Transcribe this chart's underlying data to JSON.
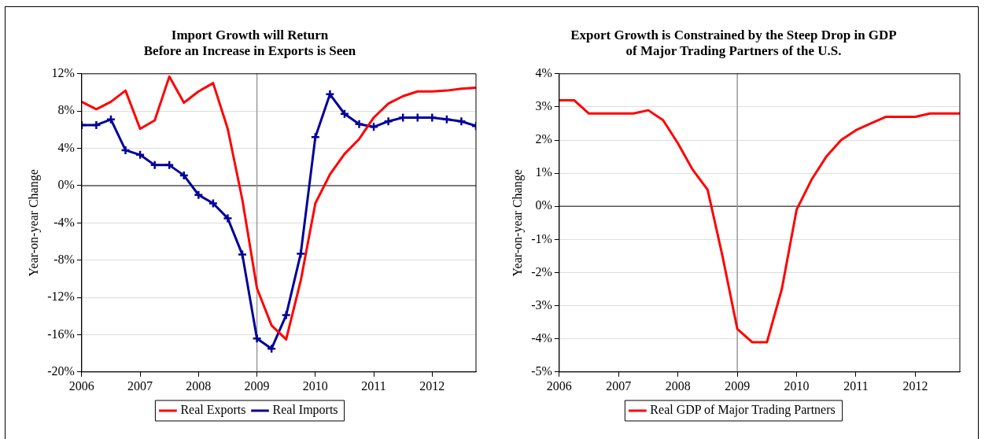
{
  "chart_data": [
    {
      "type": "line",
      "title": [
        "Import Growth will Return",
        "Before an Increase in Exports is Seen"
      ],
      "ylabel": "Year-on-year Change",
      "x": [
        2006,
        2006.25,
        2006.5,
        2006.75,
        2007,
        2007.25,
        2007.5,
        2007.75,
        2008,
        2008.25,
        2008.5,
        2008.75,
        2009,
        2009.25,
        2009.5,
        2009.75,
        2010,
        2010.25,
        2010.5,
        2010.75,
        2011,
        2011.25,
        2011.5,
        2011.75,
        2012,
        2012.25,
        2012.5,
        2012.75
      ],
      "series": [
        {
          "name": "Real Exports",
          "color": "#ff0000",
          "marker": "none",
          "values": [
            9.0,
            8.2,
            9.0,
            10.2,
            6.1,
            7.0,
            11.7,
            8.9,
            10.1,
            11.0,
            6.1,
            -1.5,
            -11.0,
            -15.0,
            -16.5,
            -10.2,
            -1.9,
            1.2,
            3.4,
            5.0,
            7.3,
            8.8,
            9.6,
            10.1,
            10.1,
            10.2,
            10.4,
            10.5
          ]
        },
        {
          "name": "Real Imports",
          "color": "#000099",
          "marker": "cross",
          "values": [
            6.5,
            6.5,
            7.1,
            3.8,
            3.3,
            2.2,
            2.2,
            1.1,
            -1.0,
            -1.9,
            -3.5,
            -7.4,
            -16.4,
            -17.5,
            -13.9,
            -7.3,
            5.2,
            9.8,
            7.7,
            6.6,
            6.3,
            6.9,
            7.3,
            7.3,
            7.3,
            7.1,
            6.9,
            6.4
          ]
        }
      ],
      "xlim": [
        2006,
        2012.75
      ],
      "xticks": [
        2006,
        2007,
        2008,
        2009,
        2010,
        2011,
        2012
      ],
      "ylim": [
        -20,
        12
      ],
      "yticks": [
        {
          "value": -20,
          "label": "-20%"
        },
        {
          "value": -16,
          "label": "-16%"
        },
        {
          "value": -12,
          "label": "-12%"
        },
        {
          "value": -8,
          "label": "-8%"
        },
        {
          "value": -4,
          "label": "-4%"
        },
        {
          "value": 0,
          "label": "0%"
        },
        {
          "value": 4,
          "label": "4%"
        },
        {
          "value": 8,
          "label": "8%"
        },
        {
          "value": 12,
          "label": "12%"
        }
      ],
      "ref_lines": [
        {
          "axis": "y",
          "value": 0,
          "label": null,
          "color": "#555555"
        },
        {
          "axis": "x",
          "value": 2009,
          "label": null,
          "color": "#999999"
        }
      ],
      "grid": "y",
      "legend": "bottom",
      "line_style": "solid"
    },
    {
      "type": "line",
      "title": [
        "Export Growth is Constrained by the Steep Drop in GDP",
        "of Major Trading Partners of the U.S."
      ],
      "ylabel": "Year-on-year Change",
      "x": [
        2006,
        2006.25,
        2006.5,
        2006.75,
        2007,
        2007.25,
        2007.5,
        2007.75,
        2008,
        2008.25,
        2008.5,
        2008.75,
        2009,
        2009.25,
        2009.5,
        2009.75,
        2010,
        2010.25,
        2010.5,
        2010.75,
        2011,
        2011.25,
        2011.5,
        2011.75,
        2012,
        2012.25,
        2012.5,
        2012.75
      ],
      "series": [
        {
          "name": "Real GDP of Major Trading Partners",
          "color": "#ff0000",
          "marker": "none",
          "values": [
            3.2,
            3.2,
            2.8,
            2.8,
            2.8,
            2.8,
            2.9,
            2.6,
            1.9,
            1.1,
            0.5,
            -1.5,
            -3.7,
            -4.1,
            -4.1,
            -2.5,
            -0.1,
            0.8,
            1.5,
            2.0,
            2.3,
            2.5,
            2.7,
            2.7,
            2.7,
            2.8,
            2.8,
            2.8
          ]
        }
      ],
      "xlim": [
        2006,
        2012.75
      ],
      "xticks": [
        2006,
        2007,
        2008,
        2009,
        2010,
        2011,
        2012
      ],
      "ylim": [
        -5,
        4
      ],
      "yticks": [
        {
          "value": -5,
          "label": "-5%"
        },
        {
          "value": -4,
          "label": "-4%"
        },
        {
          "value": -3,
          "label": "-3%"
        },
        {
          "value": -2,
          "label": "-2%"
        },
        {
          "value": -1,
          "label": "-1%"
        },
        {
          "value": 0,
          "label": "0%"
        },
        {
          "value": 1,
          "label": "1%"
        },
        {
          "value": 2,
          "label": "2%"
        },
        {
          "value": 3,
          "label": "3%"
        },
        {
          "value": 4,
          "label": "4%"
        }
      ],
      "ref_lines": [
        {
          "axis": "y",
          "value": 0,
          "label": null,
          "color": "#555555"
        },
        {
          "axis": "x",
          "value": 2009,
          "label": null,
          "color": "#999999"
        }
      ],
      "grid": "y",
      "legend": "bottom",
      "line_style": "solid"
    }
  ]
}
